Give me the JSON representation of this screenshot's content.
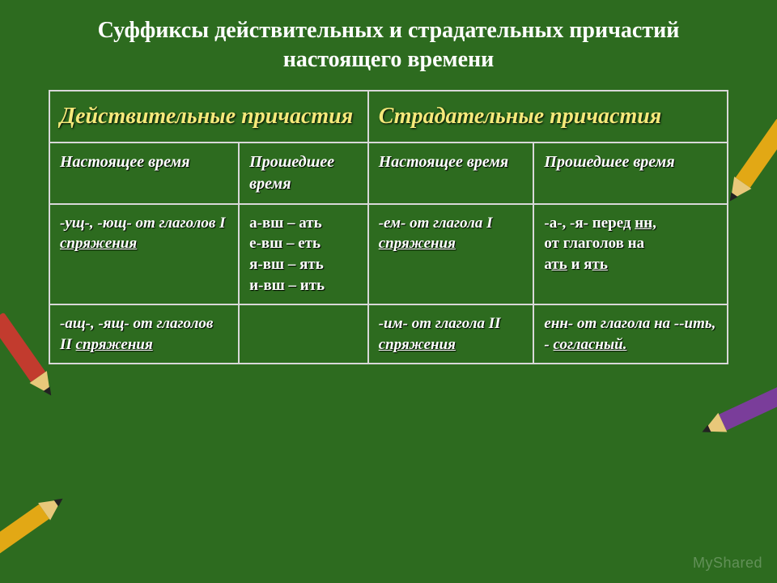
{
  "title": "Суффиксы действительных и страдательных причастий настоящего времени",
  "table": {
    "header_main": [
      "Действительные причастия",
      "Страдательные причастия"
    ],
    "header_sub": [
      "Настоящее время",
      "Прошедшее время",
      "Настоящее время",
      "Прошедшее время"
    ],
    "row1": {
      "c1_pre": "-ущ-, -ющ- от глаголов I ",
      "c1_link": "спряжения",
      "c2_l1": "а-вш – ать",
      "c2_l2": "е-вш – еть",
      "c2_l3": "я-вш – ять",
      "c2_l4": "и-вш – ить",
      "c3_pre": "-ем- от глагола I ",
      "c3_link": "спряжения",
      "c4_l1_pre": "-а-, -я- перед ",
      "c4_l1_u": "нн,",
      "c4_l2": "от глаголов на",
      "c4_l3_a": "а",
      "c4_l3_t1": "ть",
      "c4_l3_and": " и я",
      "c4_l3_t2": "ть"
    },
    "row2": {
      "c1_pre": "-ащ-, -ящ- от глаголов II ",
      "c1_link": "спряжения",
      "c2": "",
      "c3_pre": "-им- от глагола II ",
      "c3_link": "спряжения",
      "c4_pre": "енн- от глагола на --ить, - ",
      "c4_link": "согласный."
    }
  },
  "watermark": "MyShared",
  "colors": {
    "background": "#2d6b1f",
    "border": "#d8d8d8",
    "header_accent": "#f5e97a",
    "text": "#ffffff"
  },
  "fonts": {
    "title_size_pt": 21,
    "header_main_size_pt": 21,
    "cell_size_pt": 14
  }
}
